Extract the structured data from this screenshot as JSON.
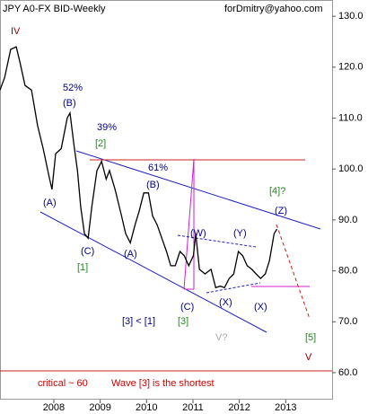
{
  "chart_data": {
    "type": "line",
    "title": "JPY A0-FX BID-Weekly",
    "source": "forDmitry@yahoo.com",
    "x": [
      2006.84,
      2006.94,
      2007.07,
      2007.19,
      2007.27,
      2007.38,
      2007.52,
      2007.65,
      2007.77,
      2007.91,
      2007.96,
      2008.04,
      2008.16,
      2008.29,
      2008.35,
      2008.43,
      2008.51,
      2008.58,
      2008.66,
      2008.74,
      2008.82,
      2008.93,
      2009.03,
      2009.13,
      2009.2,
      2009.32,
      2009.46,
      2009.55,
      2009.65,
      2009.75,
      2009.84,
      2009.94,
      2010.04,
      2010.13,
      2010.23,
      2010.33,
      2010.43,
      2010.52,
      2010.62,
      2010.72,
      2010.81,
      2010.91,
      2011.01,
      2011.06,
      2011.14,
      2011.26,
      2011.39,
      2011.49,
      2011.59,
      2011.68,
      2011.78,
      2011.88,
      2011.98,
      2012.07,
      2012.17,
      2012.27,
      2012.36,
      2012.46,
      2012.56,
      2012.65,
      2012.75,
      2012.81
    ],
    "series": [
      {
        "color": "#000000",
        "values": [
          115.5,
          118,
          123.5,
          124,
          121,
          116.4,
          115.5,
          108.5,
          104,
          98,
          96,
          103,
          104,
          110,
          111,
          105,
          99.7,
          92.6,
          87.3,
          86.4,
          92.6,
          99.7,
          101.5,
          98,
          99.7,
          96,
          90.8,
          87.3,
          85.5,
          89,
          91.7,
          95.3,
          95.3,
          90.8,
          89,
          86.4,
          83.8,
          81,
          81,
          83.8,
          83,
          81,
          83,
          87.3,
          80.3,
          79.4,
          80.3,
          76.7,
          77,
          76.7,
          78.5,
          79.4,
          83.8,
          83,
          81,
          80.3,
          79.4,
          78.5,
          79.4,
          82,
          87.3,
          88.2
        ]
      }
    ],
    "xlim": [
      2006.84,
      2014.0
    ],
    "ylim": [
      54.7,
      133.2
    ],
    "xticks": [
      2008,
      2009,
      2010,
      2011,
      2012,
      2013
    ],
    "yticks": [
      {
        "value": 60,
        "label": "60.0"
      },
      {
        "value": 70,
        "label": "70.0"
      },
      {
        "value": 80,
        "label": "80.0"
      },
      {
        "value": 90,
        "label": "90.0"
      },
      {
        "value": 100,
        "label": "100.0"
      },
      {
        "value": 110,
        "label": "110.0"
      },
      {
        "value": 120,
        "label": "120.0"
      },
      {
        "value": 130,
        "label": "130.0"
      }
    ],
    "annotations": [
      {
        "text": "IV",
        "color": "#8b0000"
      },
      {
        "text": "52%",
        "color": "#00008b"
      },
      {
        "text": "(B)",
        "color": "#00008b"
      },
      {
        "text": "39%",
        "color": "#00008b"
      },
      {
        "text": "[2]",
        "color": "#228b22"
      },
      {
        "text": "61%",
        "color": "#00008b"
      },
      {
        "text": "(B)",
        "color": "#00008b"
      },
      {
        "text": "(A)",
        "color": "#00008b"
      },
      {
        "text": "(W)",
        "color": "#00008b"
      },
      {
        "text": "(Y)",
        "color": "#00008b"
      },
      {
        "text": "[4]?",
        "color": "#228b22"
      },
      {
        "text": "(Z)",
        "color": "#00008b"
      },
      {
        "text": "(C)",
        "color": "#00008b"
      },
      {
        "text": "(A)",
        "color": "#00008b"
      },
      {
        "text": "[1]",
        "color": "#228b22"
      },
      {
        "text": "(C)",
        "color": "#00008b"
      },
      {
        "text": "(X)",
        "color": "#00008b"
      },
      {
        "text": "(X)",
        "color": "#00008b"
      },
      {
        "text": "[3] < [1]",
        "color": "#00008b"
      },
      {
        "text": "[3]",
        "color": "#228b22"
      },
      {
        "text": "V?",
        "color": "#aaaaaa"
      },
      {
        "text": "[5]",
        "color": "#228b22"
      },
      {
        "text": "V",
        "color": "#8b0000"
      },
      {
        "text": "critical",
        "color": "#cc0000"
      },
      {
        "text": "~ 60",
        "color": "#cc0000"
      },
      {
        "text": "Wave [3] is the shortest",
        "color": "#cc0000"
      }
    ]
  }
}
